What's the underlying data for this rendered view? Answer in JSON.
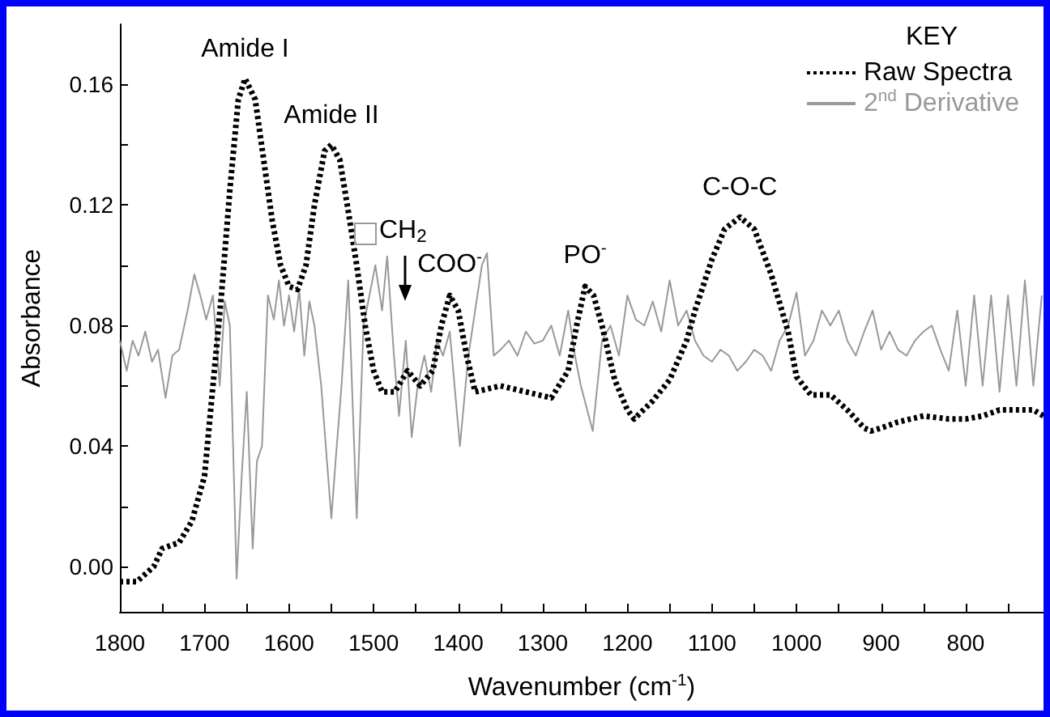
{
  "chart_data": {
    "type": "line",
    "xlabel": "Wavenumber (cm$^{-1}$)",
    "ylabel": "Absorbance",
    "legend_title": "KEY",
    "xlim": [
      1800,
      708
    ],
    "ylim": [
      -0.015,
      0.18
    ],
    "xticks": [
      1800,
      {
        "value": 1750,
        "label": null
      },
      1700,
      {
        "value": 1650,
        "label": null
      },
      1600,
      {
        "value": 1550,
        "label": null
      },
      1500,
      {
        "value": 1450,
        "label": null
      },
      1400,
      {
        "value": 1350,
        "label": null
      },
      1300,
      {
        "value": 1250,
        "label": null
      },
      1200,
      {
        "value": 1150,
        "label": null
      },
      1100,
      {
        "value": 1050,
        "label": null
      },
      1000,
      {
        "value": 950,
        "label": null
      },
      900,
      {
        "value": 850,
        "label": null
      },
      800,
      {
        "value": 750,
        "label": null
      }
    ],
    "yticks": [
      {
        "value": 0,
        "label": "0.00"
      },
      {
        "value": 0.02,
        "label": null
      },
      {
        "value": 0.04,
        "label": "0.04"
      },
      {
        "value": 0.06,
        "label": null
      },
      {
        "value": 0.08,
        "label": "0.08"
      },
      {
        "value": 0.1,
        "label": null
      },
      {
        "value": 0.12,
        "label": "0.12"
      },
      {
        "value": 0.14,
        "label": null
      },
      {
        "value": 0.16,
        "label": "0.16"
      }
    ],
    "grid": false,
    "legend": "top right",
    "marker": "none",
    "series": [
      {
        "name": "Raw Spectra",
        "color": "#000000",
        "line_style": "dotted",
        "x": [
          1800,
          1780,
          1760,
          1750,
          1730,
          1715,
          1700,
          1690,
          1680,
          1670,
          1660,
          1652,
          1640,
          1630,
          1620,
          1610,
          1600,
          1590,
          1580,
          1570,
          1558,
          1550,
          1540,
          1530,
          1520,
          1510,
          1500,
          1490,
          1475,
          1460,
          1445,
          1430,
          1420,
          1410,
          1400,
          1390,
          1380,
          1350,
          1320,
          1290,
          1270,
          1260,
          1250,
          1240,
          1230,
          1215,
          1200,
          1192,
          1170,
          1150,
          1130,
          1120,
          1100,
          1085,
          1067,
          1050,
          1030,
          1010,
          1000,
          983,
          960,
          940,
          920,
          912,
          900,
          880,
          850,
          820,
          800,
          780,
          760,
          740,
          720,
          708
        ],
        "values": [
          -0.005,
          -0.005,
          0.0,
          0.006,
          0.008,
          0.015,
          0.03,
          0.06,
          0.09,
          0.125,
          0.155,
          0.162,
          0.155,
          0.135,
          0.115,
          0.1,
          0.093,
          0.092,
          0.1,
          0.12,
          0.138,
          0.14,
          0.135,
          0.118,
          0.1,
          0.08,
          0.065,
          0.058,
          0.058,
          0.065,
          0.06,
          0.065,
          0.08,
          0.09,
          0.085,
          0.07,
          0.058,
          0.06,
          0.058,
          0.056,
          0.065,
          0.08,
          0.093,
          0.09,
          0.08,
          0.062,
          0.052,
          0.049,
          0.055,
          0.062,
          0.075,
          0.085,
          0.102,
          0.112,
          0.116,
          0.112,
          0.097,
          0.078,
          0.063,
          0.057,
          0.057,
          0.052,
          0.046,
          0.045,
          0.046,
          0.048,
          0.05,
          0.049,
          0.049,
          0.05,
          0.052,
          0.052,
          0.052,
          0.05
        ]
      },
      {
        "name": "2$^{nd}$ Derivative",
        "color": "#999999",
        "line_style": "solid",
        "x": [
          1800,
          1792,
          1785,
          1778,
          1770,
          1762,
          1755,
          1746,
          1738,
          1730,
          1720,
          1712,
          1705,
          1698,
          1690,
          1682,
          1676,
          1670,
          1662,
          1656,
          1650,
          1643,
          1638,
          1632,
          1625,
          1618,
          1612,
          1606,
          1600,
          1594,
          1588,
          1582,
          1576,
          1570,
          1562,
          1550,
          1545,
          1538,
          1530,
          1520,
          1512,
          1505,
          1498,
          1490,
          1484,
          1476,
          1470,
          1462,
          1455,
          1448,
          1440,
          1432,
          1425,
          1418,
          1410,
          1398,
          1388,
          1380,
          1372,
          1366,
          1358,
          1350,
          1340,
          1330,
          1320,
          1310,
          1300,
          1290,
          1280,
          1270,
          1262,
          1255,
          1241,
          1230,
          1220,
          1210,
          1200,
          1190,
          1180,
          1170,
          1160,
          1150,
          1140,
          1130,
          1120,
          1110,
          1100,
          1090,
          1080,
          1070,
          1060,
          1050,
          1040,
          1030,
          1020,
          1010,
          1000,
          990,
          980,
          970,
          960,
          950,
          940,
          930,
          920,
          910,
          900,
          890,
          880,
          870,
          860,
          850,
          840,
          830,
          820,
          810,
          800,
          790,
          780,
          770,
          760,
          750,
          740,
          730,
          720,
          710
        ],
        "values": [
          0.075,
          0.065,
          0.075,
          0.07,
          0.078,
          0.068,
          0.072,
          0.056,
          0.07,
          0.072,
          0.085,
          0.097,
          0.09,
          0.082,
          0.09,
          0.06,
          0.088,
          0.08,
          -0.004,
          0.03,
          0.058,
          0.006,
          0.035,
          0.04,
          0.09,
          0.082,
          0.095,
          0.08,
          0.09,
          0.078,
          0.092,
          0.07,
          0.088,
          0.08,
          0.06,
          0.016,
          0.035,
          0.06,
          0.095,
          0.016,
          0.08,
          0.09,
          0.1,
          0.085,
          0.103,
          0.07,
          0.05,
          0.075,
          0.043,
          0.06,
          0.07,
          0.058,
          0.075,
          0.07,
          0.078,
          0.04,
          0.07,
          0.085,
          0.1,
          0.104,
          0.07,
          0.072,
          0.075,
          0.07,
          0.078,
          0.074,
          0.075,
          0.08,
          0.07,
          0.085,
          0.07,
          0.06,
          0.045,
          0.075,
          0.08,
          0.07,
          0.09,
          0.082,
          0.08,
          0.088,
          0.078,
          0.095,
          0.08,
          0.085,
          0.075,
          0.07,
          0.068,
          0.072,
          0.07,
          0.065,
          0.068,
          0.072,
          0.07,
          0.065,
          0.075,
          0.08,
          0.091,
          0.07,
          0.075,
          0.085,
          0.08,
          0.085,
          0.075,
          0.07,
          0.078,
          0.085,
          0.072,
          0.078,
          0.072,
          0.07,
          0.075,
          0.078,
          0.08,
          0.072,
          0.065,
          0.085,
          0.06,
          0.09,
          0.06,
          0.09,
          0.058,
          0.09,
          0.06,
          0.095,
          0.06,
          0.09
        ]
      }
    ],
    "annotations": [
      {
        "text": "Amide I",
        "x": 1652,
        "y": 0.162
      },
      {
        "text": "Amide II",
        "x": 1550,
        "y": 0.14
      },
      "CH$_{2}$",
      {
        "text": "COO$^{-}$",
        "x": 1410,
        "y": 0.09
      },
      {
        "text": "PO$^{-}$",
        "x": 1250,
        "y": 0.093
      },
      {
        "text": "C-O-C",
        "x": 1067,
        "y": 0.116
      }
    ]
  }
}
